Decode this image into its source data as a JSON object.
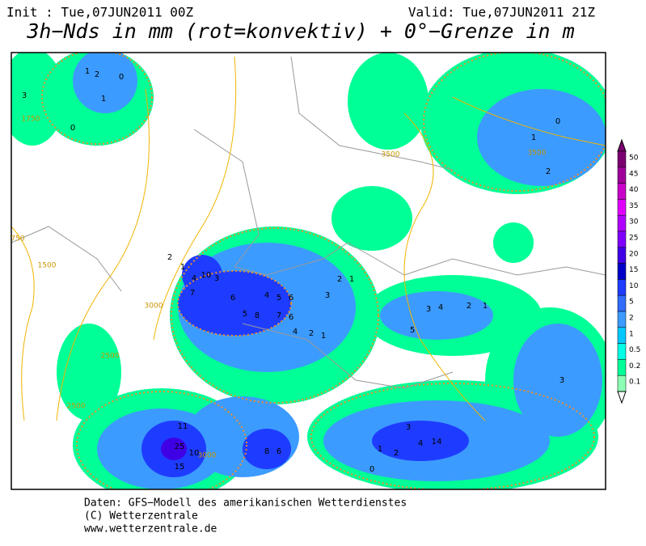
{
  "header": {
    "init": "Init : Tue,07JUN2011 00Z",
    "valid": "Valid: Tue,07JUN2011 21Z",
    "title": "3h−Nds in mm (rot=konvektiv) + 0°−Grenze in m"
  },
  "map": {
    "contour_labels": [
      "1750",
      "3500",
      "3500",
      "750",
      "1500",
      "3000",
      "2500",
      "2500",
      "3000"
    ],
    "grid_values": [
      "1",
      "2",
      "0",
      "3",
      "1",
      "0",
      "2",
      "1",
      "4",
      "10",
      "7",
      "6",
      "5",
      "8",
      "7",
      "6",
      "4",
      "2",
      "1",
      "3",
      "4",
      "5",
      "6",
      "3",
      "2",
      "1",
      "14",
      "11",
      "25",
      "10",
      "15",
      "8",
      "6",
      "4",
      "3",
      "2",
      "1",
      "0",
      "5",
      "3",
      "4",
      "2",
      "1",
      "0",
      "1",
      "2",
      "3"
    ]
  },
  "legend": {
    "levels": [
      50,
      45,
      40,
      35,
      30,
      25,
      20,
      15,
      10,
      5,
      2,
      1,
      0.5,
      0.2,
      0.1
    ],
    "colors": [
      "#7a0070",
      "#a0009a",
      "#c800c8",
      "#e000ff",
      "#b000ff",
      "#8000ff",
      "#4000e6",
      "#0000c8",
      "#1e3cff",
      "#2f6cff",
      "#3c9bff",
      "#00c8ff",
      "#00ffe6",
      "#00ff96",
      "#8cffb4"
    ]
  },
  "footer": {
    "lines": [
      "Daten: GFS−Modell des amerikanischen Wetterdienstes",
      "(C) Wetterzentrale",
      "www.wetterzentrale.de"
    ]
  }
}
